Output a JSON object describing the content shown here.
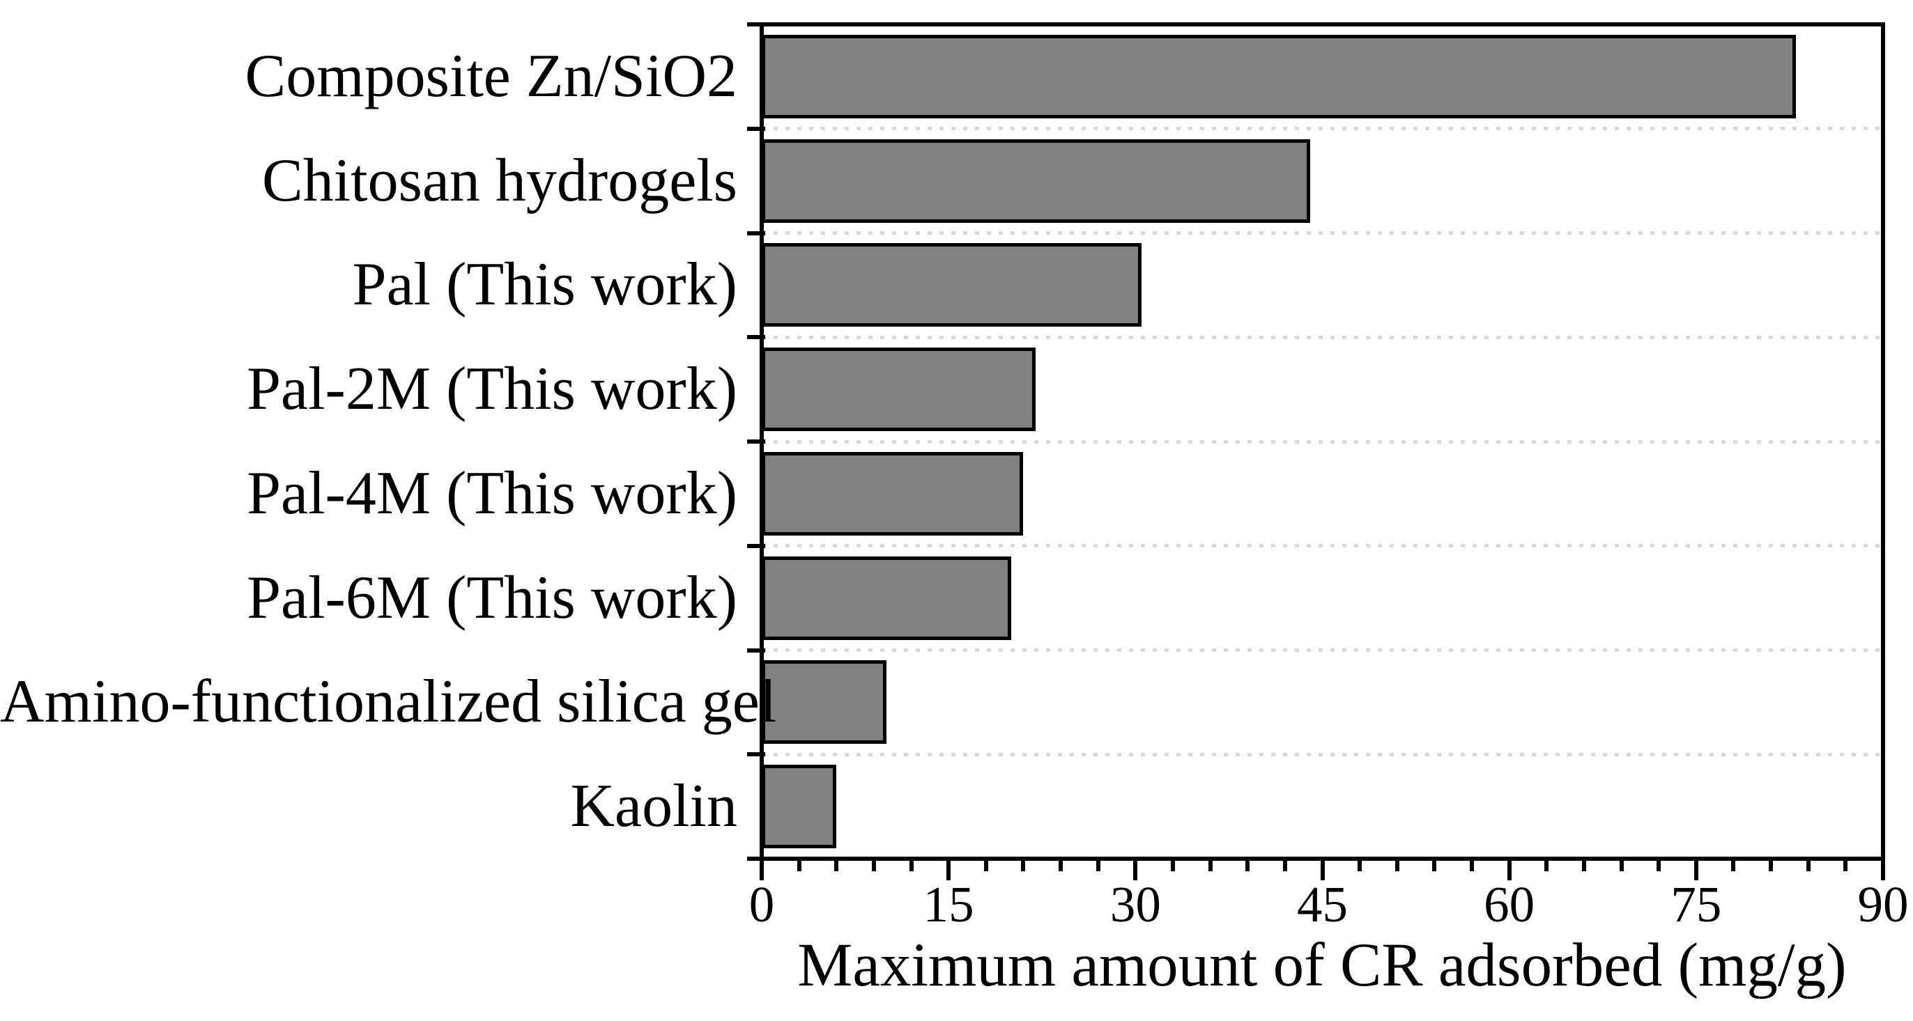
{
  "chart_data": {
    "type": "bar",
    "orientation": "horizontal",
    "title": "",
    "xlabel": "Maximum amount of CR adsorbed (mg/g)",
    "ylabel": "",
    "categories": [
      "Composite Zn/SiO2",
      "Chitosan hydrogels",
      "Pal (This work)",
      "Pal-2M (This work)",
      "Pal-4M (This work)",
      "Pal-6M (This work)",
      "Amino-functionalized silica gel",
      "Kaolin"
    ],
    "values": [
      83,
      44,
      30.5,
      22,
      21,
      20,
      10,
      6
    ],
    "value_unit": "mg/g",
    "xlim": [
      0,
      90
    ],
    "x_major_ticks": [
      0,
      15,
      30,
      45,
      60,
      75,
      90
    ],
    "x_minor_tick_step": 3,
    "grid": "dotted horizontal separators between category slots",
    "legend": "none",
    "colors": {
      "bar_fill": "#818181",
      "bar_border": "#000000",
      "frame": "#000000",
      "gridline": "#d9d9d9",
      "text": "#000000"
    }
  }
}
